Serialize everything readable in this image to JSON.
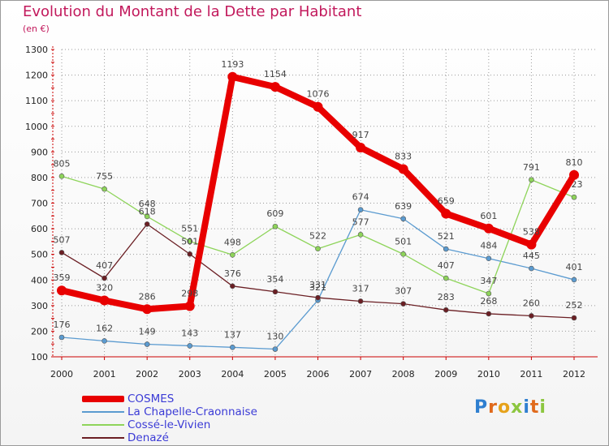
{
  "title": "Evolution du Montant de la Dette par Habitant",
  "unit_label": "(en €)",
  "logo_text": "Proxiti",
  "colors": {
    "title": "#c2195c",
    "axis": "#cc0000",
    "grid": "#9a9a9a",
    "tick_text": "#222222",
    "value_text": "#444444",
    "legend_text": "#3b3bd6"
  },
  "chart_data": {
    "type": "line",
    "x": [
      "2000",
      "2001",
      "2002",
      "2003",
      "2004",
      "2005",
      "2006",
      "2007",
      "2008",
      "2009",
      "2010",
      "2011",
      "2012"
    ],
    "ylim": [
      100,
      1300
    ],
    "yticks": [
      100,
      200,
      300,
      400,
      500,
      600,
      700,
      800,
      900,
      1000,
      1100,
      1200,
      1300
    ],
    "grid": "horizontal dotted",
    "legend_position": "bottom-left",
    "series": [
      {
        "name": "COSMES",
        "color": "#e80000",
        "values": [
          359,
          320,
          286,
          298,
          1193,
          1154,
          1076,
          917,
          833,
          659,
          601,
          538,
          810
        ]
      },
      {
        "name": "La Chapelle-Craonnaise",
        "color": "#5b9bd0",
        "values": [
          176,
          162,
          149,
          143,
          137,
          130,
          321,
          674,
          639,
          521,
          484,
          445,
          401
        ]
      },
      {
        "name": "Cossé-le-Vivien",
        "color": "#8ed45a",
        "values": [
          805,
          755,
          648,
          551,
          498,
          609,
          522,
          577,
          501,
          407,
          347,
          791,
          723
        ]
      },
      {
        "name": "Denazé",
        "color": "#6b1f24",
        "values": [
          507,
          407,
          618,
          501,
          376,
          354,
          331,
          317,
          307,
          283,
          268,
          260,
          252
        ]
      }
    ]
  }
}
